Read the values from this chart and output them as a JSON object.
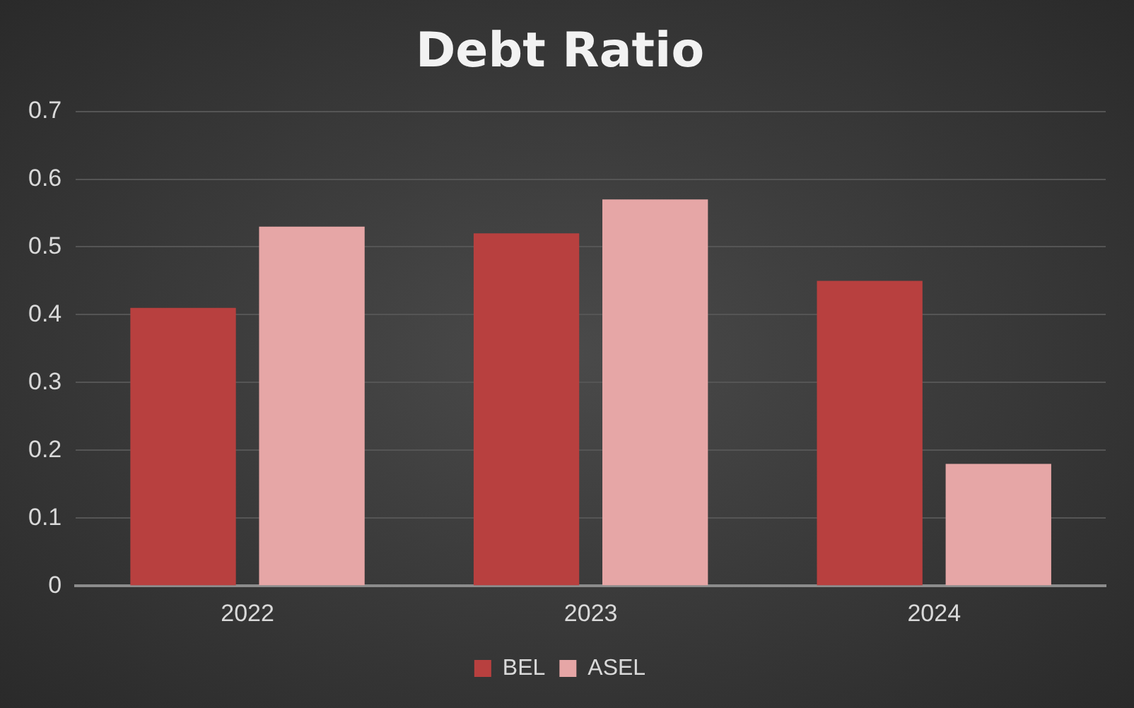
{
  "chart_data": {
    "type": "bar",
    "title": "Debt Ratio",
    "categories": [
      "2022",
      "2023",
      "2024"
    ],
    "series": [
      {
        "name": "BEL",
        "color": "#b8403f",
        "values": [
          0.41,
          0.52,
          0.45
        ]
      },
      {
        "name": "ASEL",
        "color": "#e6a6a6",
        "values": [
          0.53,
          0.57,
          0.18
        ]
      }
    ],
    "ylim": [
      0,
      0.7
    ],
    "yticks": [
      0,
      0.1,
      0.2,
      0.3,
      0.4,
      0.5,
      0.6,
      0.7
    ],
    "grid": "y",
    "legend": "bottom"
  }
}
